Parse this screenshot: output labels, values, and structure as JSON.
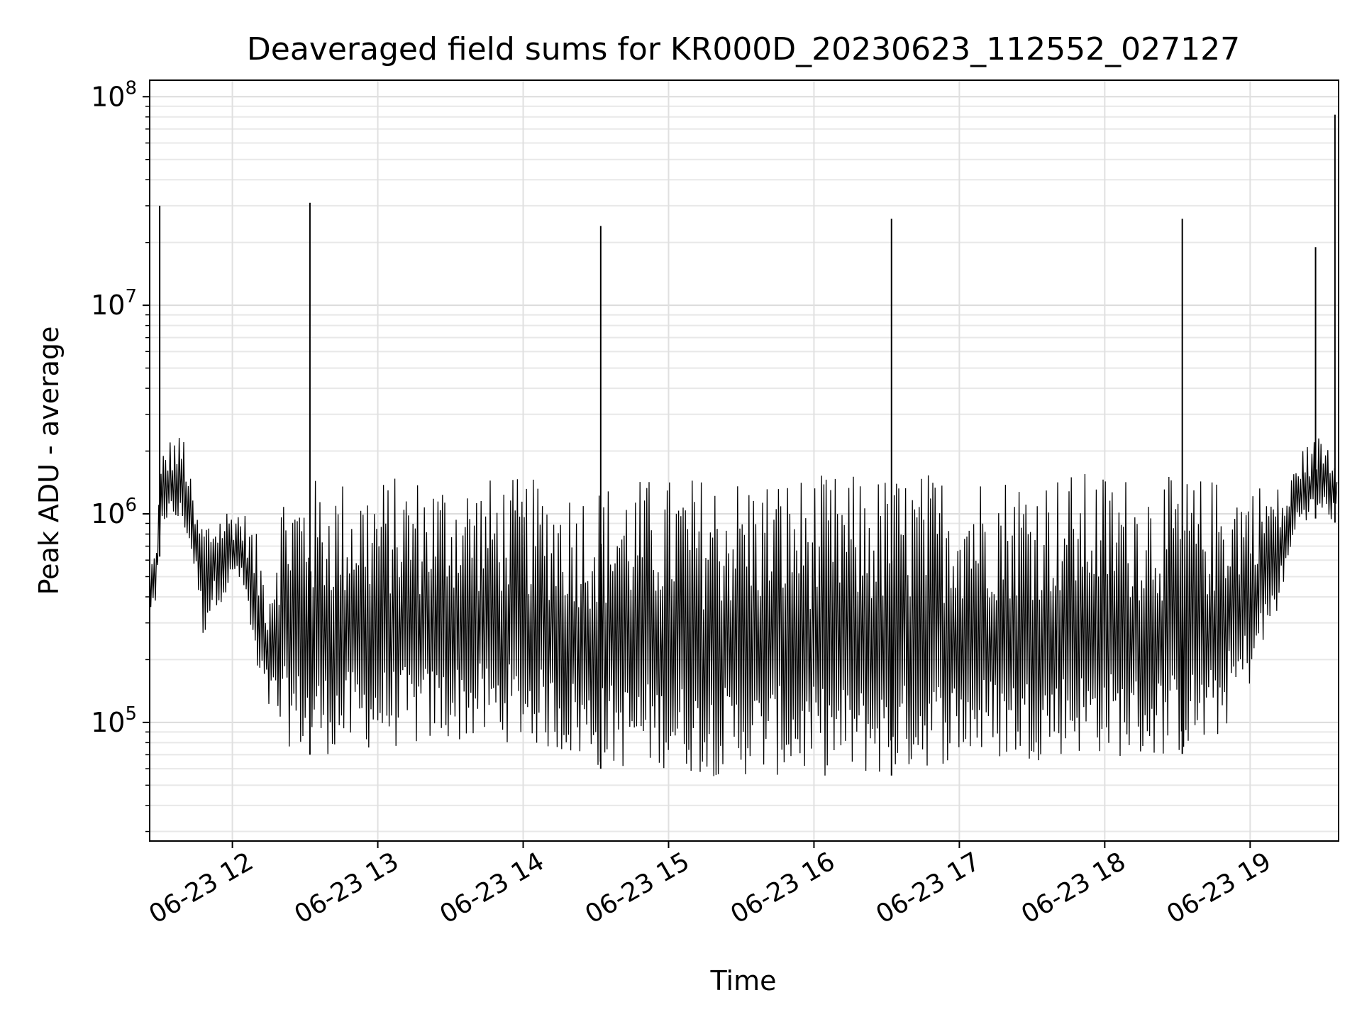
{
  "chart_data": {
    "type": "line",
    "title": "Deaveraged field sums for KR000D_20230623_112552_027127",
    "xlabel": "Time",
    "ylabel": "Peak ADU - average",
    "yscale": "log",
    "grid": true,
    "x_range": [
      "2023-06-23 11:25:52",
      "2023-06-23 19:36:30"
    ],
    "ylim": [
      27000,
      120000000
    ],
    "x_ticks": [
      "06-23 12",
      "06-23 13",
      "06-23 14",
      "06-23 15",
      "06-23 16",
      "06-23 17",
      "06-23 18",
      "06-23 19"
    ],
    "y_ticks": [
      {
        "base": "10",
        "exp": "5",
        "value": 100000
      },
      {
        "base": "10",
        "exp": "6",
        "value": 1000000
      },
      {
        "base": "10",
        "exp": "7",
        "value": 10000000
      },
      {
        "base": "10",
        "exp": "8",
        "value": 100000000
      }
    ],
    "line_color": "#000000",
    "spikes": [
      {
        "x": "2023-06-23 11:30:00",
        "y": 30000000
      },
      {
        "x": "2023-06-23 12:32:00",
        "y": 31000000
      },
      {
        "x": "2023-06-23 14:32:00",
        "y": 24000000
      },
      {
        "x": "2023-06-23 16:32:00",
        "y": 26000000
      },
      {
        "x": "2023-06-23 18:32:00",
        "y": 26000000
      },
      {
        "x": "2023-06-23 19:27:00",
        "y": 19000000
      },
      {
        "x": "2023-06-23 19:35:00",
        "y": 82000000
      }
    ],
    "series": [
      {
        "x": [
          "2023-06-23 11:25:52",
          "2023-06-23 11:28:00",
          "2023-06-23 11:31:00",
          "2023-06-23 11:35:00",
          "2023-06-23 11:40:00",
          "2023-06-23 11:45:00",
          "2023-06-23 11:48:00",
          "2023-06-23 11:52:00",
          "2023-06-23 11:58:00",
          "2023-06-23 12:02:00",
          "2023-06-23 12:06:00",
          "2023-06-23 12:10:00",
          "2023-06-23 12:15:00",
          "2023-06-23 12:20:00",
          "2023-06-23 12:30:00",
          "2023-06-23 12:45:00",
          "2023-06-23 13:00:00",
          "2023-06-23 13:15:00",
          "2023-06-23 13:30:00",
          "2023-06-23 13:45:00",
          "2023-06-23 14:00:00",
          "2023-06-23 14:15:00",
          "2023-06-23 14:30:00",
          "2023-06-23 14:45:00",
          "2023-06-23 15:00:00",
          "2023-06-23 15:15:00",
          "2023-06-23 15:30:00",
          "2023-06-23 15:45:00",
          "2023-06-23 16:00:00",
          "2023-06-23 16:15:00",
          "2023-06-23 16:30:00",
          "2023-06-23 16:45:00",
          "2023-06-23 17:00:00",
          "2023-06-23 17:15:00",
          "2023-06-23 17:30:00",
          "2023-06-23 17:45:00",
          "2023-06-23 18:00:00",
          "2023-06-23 18:15:00",
          "2023-06-23 18:30:00",
          "2023-06-23 18:45:00",
          "2023-06-23 19:00:00",
          "2023-06-23 19:10:00",
          "2023-06-23 19:15:00",
          "2023-06-23 19:20:00",
          "2023-06-23 19:25:00",
          "2023-06-23 19:30:00",
          "2023-06-23 19:36:00"
        ],
        "lower": [
          350000,
          300000,
          900000,
          900000,
          850000,
          500000,
          250000,
          350000,
          400000,
          500000,
          350000,
          150000,
          110000,
          80000,
          70000,
          70000,
          75000,
          75000,
          80000,
          80000,
          80000,
          70000,
          60000,
          60000,
          60000,
          55000,
          55000,
          55000,
          55000,
          55000,
          55000,
          60000,
          65000,
          65000,
          65000,
          70000,
          70000,
          65000,
          70000,
          75000,
          150000,
          300000,
          500000,
          900000,
          950000,
          950000,
          900000
        ],
        "upper": [
          600000,
          700000,
          2000000,
          2400000,
          2400000,
          1000000,
          1000000,
          1000000,
          1100000,
          1100000,
          1000000,
          800000,
          500000,
          1400000,
          1500000,
          1500000,
          1500000,
          1550000,
          1550000,
          1500000,
          1500000,
          1400000,
          1400000,
          1500000,
          1500000,
          1550000,
          1550000,
          1550000,
          1550000,
          1550000,
          1550000,
          1600000,
          1600000,
          1600000,
          1600000,
          1600000,
          1600000,
          1550000,
          1500000,
          1500000,
          1450000,
          1400000,
          1300000,
          2000000,
          2200000,
          2500000,
          2000000
        ]
      }
    ]
  }
}
